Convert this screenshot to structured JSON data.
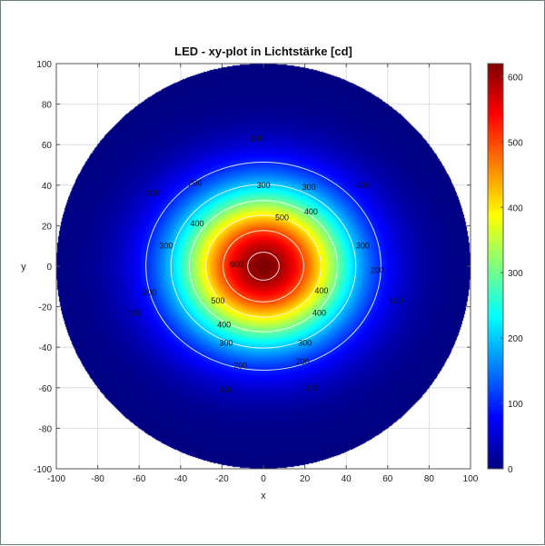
{
  "chart_data": {
    "type": "heatmap",
    "title": "LED - xy-plot in Lichtstärke [cd]",
    "xlabel": "x",
    "ylabel": "y",
    "xlim": [
      -100,
      100
    ],
    "ylim": [
      -100,
      100
    ],
    "xticks": [
      -100,
      -80,
      -60,
      -40,
      -20,
      0,
      20,
      40,
      60,
      80,
      100
    ],
    "yticks": [
      -100,
      -80,
      -60,
      -40,
      -20,
      0,
      20,
      40,
      60,
      80,
      100
    ],
    "grid": true,
    "colormap": "jet",
    "colorbar": {
      "range": [
        0,
        620
      ],
      "ticks": [
        0,
        100,
        200,
        300,
        400,
        500,
        600
      ]
    },
    "field": {
      "peak_value": 620,
      "peak_x": 0,
      "peak_y": 0,
      "domain_radius": 100
    },
    "contour_levels": [
      100,
      200,
      300,
      400,
      500,
      600
    ],
    "contour_labels": [
      {
        "text": "100",
        "x": -3,
        "y": 63
      },
      {
        "text": "200",
        "x": -33,
        "y": 41
      },
      {
        "text": "300",
        "x": 22,
        "y": 39
      },
      {
        "text": "300",
        "x": 0,
        "y": 40
      },
      {
        "text": "400",
        "x": 48,
        "y": 40
      },
      {
        "text": "100",
        "x": -53,
        "y": 36
      },
      {
        "text": "500",
        "x": 9,
        "y": 24
      },
      {
        "text": "400",
        "x": 23,
        "y": 27
      },
      {
        "text": "400",
        "x": -32,
        "y": 21
      },
      {
        "text": "300",
        "x": -47,
        "y": 10
      },
      {
        "text": "300",
        "x": 48,
        "y": 10
      },
      {
        "text": "600",
        "x": -13,
        "y": 1
      },
      {
        "text": "200",
        "x": 55,
        "y": -2
      },
      {
        "text": "200",
        "x": -55,
        "y": -13
      },
      {
        "text": "500",
        "x": -22,
        "y": -17
      },
      {
        "text": "400",
        "x": 28,
        "y": -12
      },
      {
        "text": "100",
        "x": 64,
        "y": -17
      },
      {
        "text": "100",
        "x": -62,
        "y": -23
      },
      {
        "text": "400",
        "x": -19,
        "y": -29
      },
      {
        "text": "400",
        "x": 27,
        "y": -23
      },
      {
        "text": "300",
        "x": -18,
        "y": -38
      },
      {
        "text": "300",
        "x": 20,
        "y": -38
      },
      {
        "text": "200",
        "x": -11,
        "y": -49
      },
      {
        "text": "200",
        "x": 19,
        "y": -47
      },
      {
        "text": "100",
        "x": -18,
        "y": -61
      },
      {
        "text": "100",
        "x": 23,
        "y": -60
      }
    ]
  }
}
